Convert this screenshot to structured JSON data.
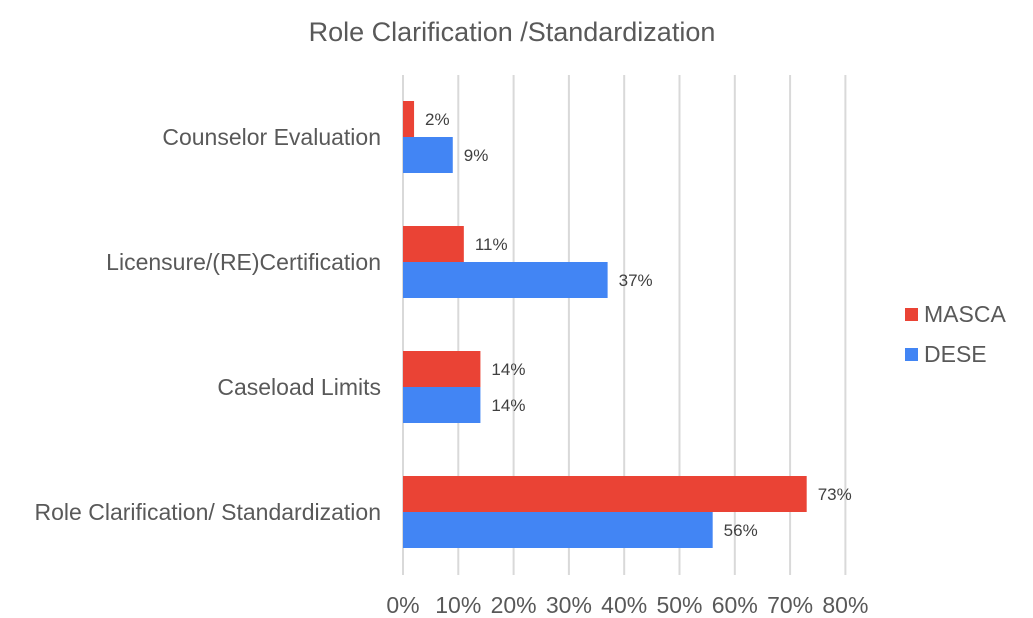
{
  "chart_data": {
    "type": "bar",
    "orientation": "horizontal",
    "title": "Role Clarification /Standardization",
    "categories": [
      "Counselor Evaluation",
      "Licensure/(RE)Certification",
      "Caseload Limits",
      "Role Clarification/ Standardization"
    ],
    "series": [
      {
        "name": "MASCA",
        "color": "#ea4335",
        "values": [
          2,
          11,
          14,
          73
        ],
        "labels": [
          "2%",
          "11%",
          "14%",
          "73%"
        ]
      },
      {
        "name": "DESE",
        "color": "#4285f4",
        "values": [
          9,
          37,
          14,
          56
        ],
        "labels": [
          "9%",
          "37%",
          "14%",
          "56%"
        ]
      }
    ],
    "xlim": [
      0,
      80
    ],
    "xticks": [
      0,
      10,
      20,
      30,
      40,
      50,
      60,
      70,
      80
    ],
    "xtick_labels": [
      "0%",
      "10%",
      "20%",
      "30%",
      "40%",
      "50%",
      "60%",
      "70%",
      "80%"
    ],
    "xlabel": "",
    "ylabel": "",
    "grid": true,
    "legend_position": "right"
  }
}
